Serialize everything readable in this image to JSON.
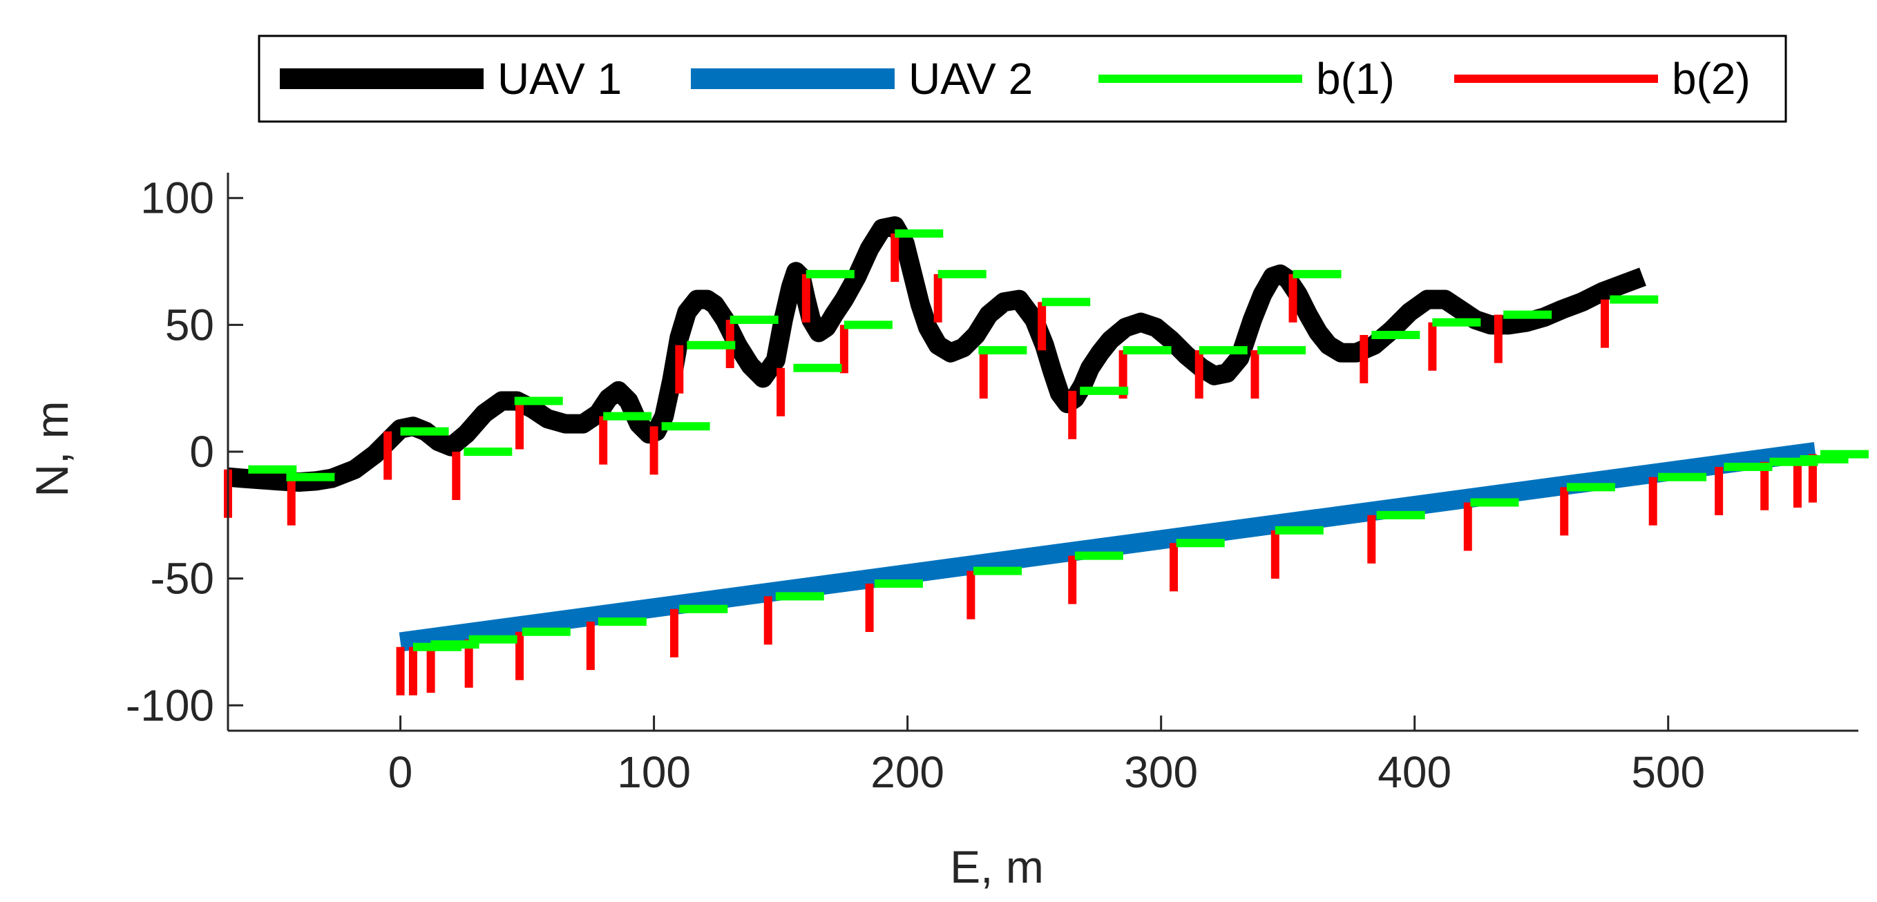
{
  "chart_data": {
    "type": "line",
    "title": "",
    "xlabel": "E, m",
    "ylabel": "N, m",
    "xlim": [
      -68,
      575
    ],
    "ylim": [
      -110,
      110
    ],
    "xticks": [
      0,
      100,
      200,
      300,
      400,
      500
    ],
    "yticks": [
      -100,
      -50,
      0,
      50,
      100
    ],
    "xtick_labels": [
      "0",
      "100",
      "200",
      "300",
      "400",
      "500"
    ],
    "ytick_labels": [
      "-100",
      "-50",
      "0",
      "50",
      "100"
    ],
    "grid": false,
    "legend_position": "top, outside, horizontal",
    "series": [
      {
        "name": "UAV 1",
        "color": "#000000",
        "x": [
          -68,
          -62,
          -55,
          -48,
          -40,
          -33,
          -27,
          -18,
          -10,
          -5,
          0,
          5,
          10,
          15,
          20,
          26,
          33,
          40,
          46,
          52,
          58,
          65,
          72,
          78,
          82,
          86,
          90,
          94,
          98,
          101,
          104,
          107,
          110,
          113,
          117,
          121,
          124,
          128,
          133,
          138,
          143,
          148,
          151,
          154,
          156,
          158,
          160,
          162,
          165,
          168,
          171,
          175,
          180,
          185,
          190,
          195,
          199,
          202,
          205,
          208,
          212,
          217,
          222,
          227,
          232,
          238,
          244,
          250,
          254,
          257,
          260,
          263,
          266,
          269,
          272,
          276,
          280,
          286,
          292,
          298,
          304,
          310,
          316,
          321,
          326,
          331,
          336,
          340,
          344,
          347,
          350,
          354,
          358,
          362,
          366,
          371,
          377,
          384,
          391,
          398,
          405,
          412,
          418,
          424,
          430,
          437,
          444,
          451,
          458,
          466,
          474,
          482,
          490
        ],
        "y": [
          -10,
          -10.5,
          -11,
          -11.5,
          -12,
          -11.5,
          -10.5,
          -7,
          -1,
          4,
          9,
          10,
          8,
          4,
          2,
          7,
          15,
          20,
          20,
          17,
          13,
          11,
          11,
          15,
          21,
          24,
          20,
          11,
          7,
          8,
          14,
          28,
          45,
          55,
          60,
          60,
          58,
          52,
          42,
          34,
          29,
          36,
          52,
          65,
          71,
          69,
          60,
          52,
          47,
          49,
          54,
          60,
          69,
          80,
          88,
          89,
          82,
          70,
          58,
          49,
          42,
          39,
          41,
          46,
          54,
          59,
          60,
          52,
          42,
          32,
          23,
          19,
          21,
          26,
          33,
          39,
          44,
          49,
          51,
          49,
          44,
          38,
          33,
          30,
          31,
          37,
          52,
          62,
          69,
          70,
          68,
          62,
          54,
          47,
          42,
          39,
          39,
          42,
          48,
          55,
          60,
          60,
          56,
          52,
          50,
          50,
          51,
          53,
          56,
          59,
          63,
          66,
          69
        ]
      },
      {
        "name": "UAV 2",
        "color": "#0072BD",
        "x": [
          0,
          558
        ],
        "y": [
          -75,
          0
        ]
      },
      {
        "name": "b(1)",
        "color": "#00FF00",
        "points": [
          [
            -60,
            -7
          ],
          [
            -45,
            -10
          ],
          [
            0,
            8
          ],
          [
            25,
            0
          ],
          [
            45,
            20
          ],
          [
            80,
            14
          ],
          [
            103,
            10
          ],
          [
            113,
            42
          ],
          [
            130,
            52
          ],
          [
            155,
            33
          ],
          [
            160,
            70
          ],
          [
            175,
            50
          ],
          [
            195,
            86
          ],
          [
            212,
            70
          ],
          [
            228,
            40
          ],
          [
            253,
            59
          ],
          [
            268,
            24
          ],
          [
            285,
            40
          ],
          [
            315,
            40
          ],
          [
            338,
            40
          ],
          [
            352,
            70
          ],
          [
            383,
            46
          ],
          [
            407,
            51
          ],
          [
            435,
            54
          ],
          [
            477,
            60
          ],
          [
            5,
            -77
          ],
          [
            12,
            -76
          ],
          [
            27,
            -74
          ],
          [
            48,
            -71
          ],
          [
            78,
            -67
          ],
          [
            110,
            -62
          ],
          [
            148,
            -57
          ],
          [
            187,
            -52
          ],
          [
            226,
            -47
          ],
          [
            266,
            -41
          ],
          [
            306,
            -36
          ],
          [
            345,
            -31
          ],
          [
            385,
            -25
          ],
          [
            422,
            -20
          ],
          [
            460,
            -14
          ],
          [
            496,
            -10
          ],
          [
            522,
            -6
          ],
          [
            540,
            -4
          ],
          [
            552,
            -3
          ],
          [
            560,
            -1
          ]
        ]
      },
      {
        "name": "b(2)",
        "color": "#FF0000",
        "points": [
          [
            -68,
            -7
          ],
          [
            -43,
            -10
          ],
          [
            -5,
            8
          ],
          [
            22,
            0
          ],
          [
            47,
            20
          ],
          [
            80,
            14
          ],
          [
            100,
            10
          ],
          [
            110,
            42
          ],
          [
            130,
            52
          ],
          [
            150,
            33
          ],
          [
            160,
            70
          ],
          [
            175,
            50
          ],
          [
            195,
            86
          ],
          [
            212,
            70
          ],
          [
            230,
            40
          ],
          [
            253,
            59
          ],
          [
            265,
            24
          ],
          [
            285,
            40
          ],
          [
            315,
            40
          ],
          [
            337,
            40
          ],
          [
            352,
            70
          ],
          [
            380,
            46
          ],
          [
            407,
            51
          ],
          [
            433,
            54
          ],
          [
            475,
            60
          ],
          [
            0,
            -77
          ],
          [
            5,
            -77
          ],
          [
            12,
            -76
          ],
          [
            27,
            -74
          ],
          [
            47,
            -71
          ],
          [
            75,
            -67
          ],
          [
            108,
            -62
          ],
          [
            145,
            -57
          ],
          [
            185,
            -52
          ],
          [
            225,
            -47
          ],
          [
            265,
            -41
          ],
          [
            305,
            -36
          ],
          [
            345,
            -31
          ],
          [
            383,
            -25
          ],
          [
            421,
            -20
          ],
          [
            459,
            -14
          ],
          [
            494,
            -10
          ],
          [
            520,
            -6
          ],
          [
            538,
            -4
          ],
          [
            551,
            -3
          ],
          [
            557,
            -1
          ]
        ]
      }
    ]
  }
}
